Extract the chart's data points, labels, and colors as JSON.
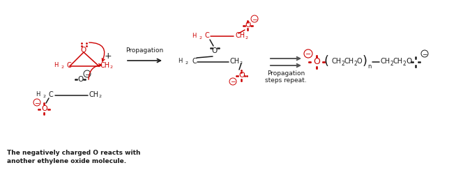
{
  "figsize": [
    6.64,
    2.57
  ],
  "dpi": 100,
  "bg_color": "#ffffff",
  "red": "#cc0000",
  "black": "#1a1a1a",
  "gray": "#555555",
  "caption_line1": "The negatively charged O reacts with",
  "caption_line2": "another ethylene oxide molecule.",
  "propagation_label": "Propagation",
  "propagation_steps_label1": "Propagation",
  "propagation_steps_label2": "steps repeat."
}
